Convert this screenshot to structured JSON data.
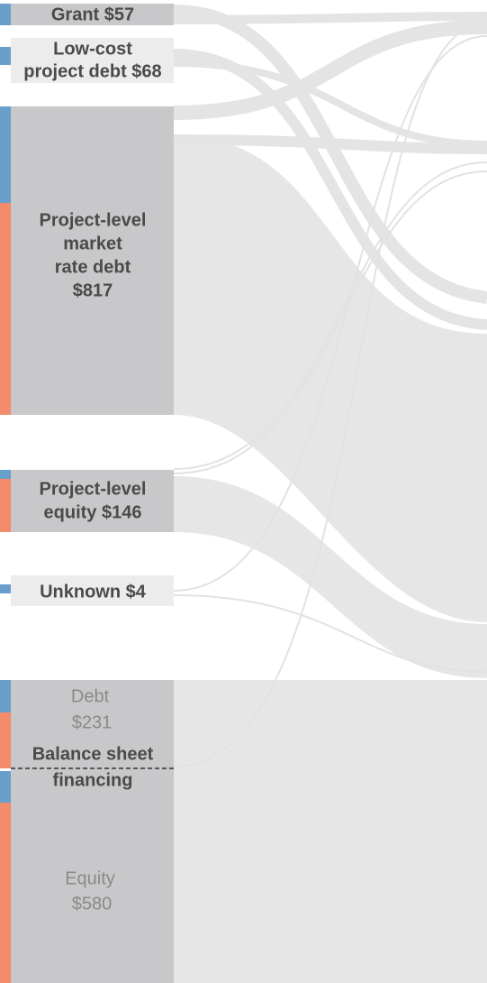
{
  "nodes": [
    {
      "lines": [
        "Grant $57"
      ]
    },
    {
      "lines": [
        "Low-cost",
        "project debt $68"
      ]
    },
    {
      "lines": [
        "Project-level",
        "market",
        "rate debt",
        "$817"
      ]
    },
    {
      "lines": [
        "Project-level",
        "equity $146"
      ]
    },
    {
      "lines": [
        "Unknown $4"
      ]
    }
  ],
  "balance_sheet": {
    "debt": [
      "Debt",
      "$231"
    ],
    "title": [
      "Balance sheet",
      "financing"
    ],
    "equity": [
      "Equity",
      "$580"
    ]
  }
}
